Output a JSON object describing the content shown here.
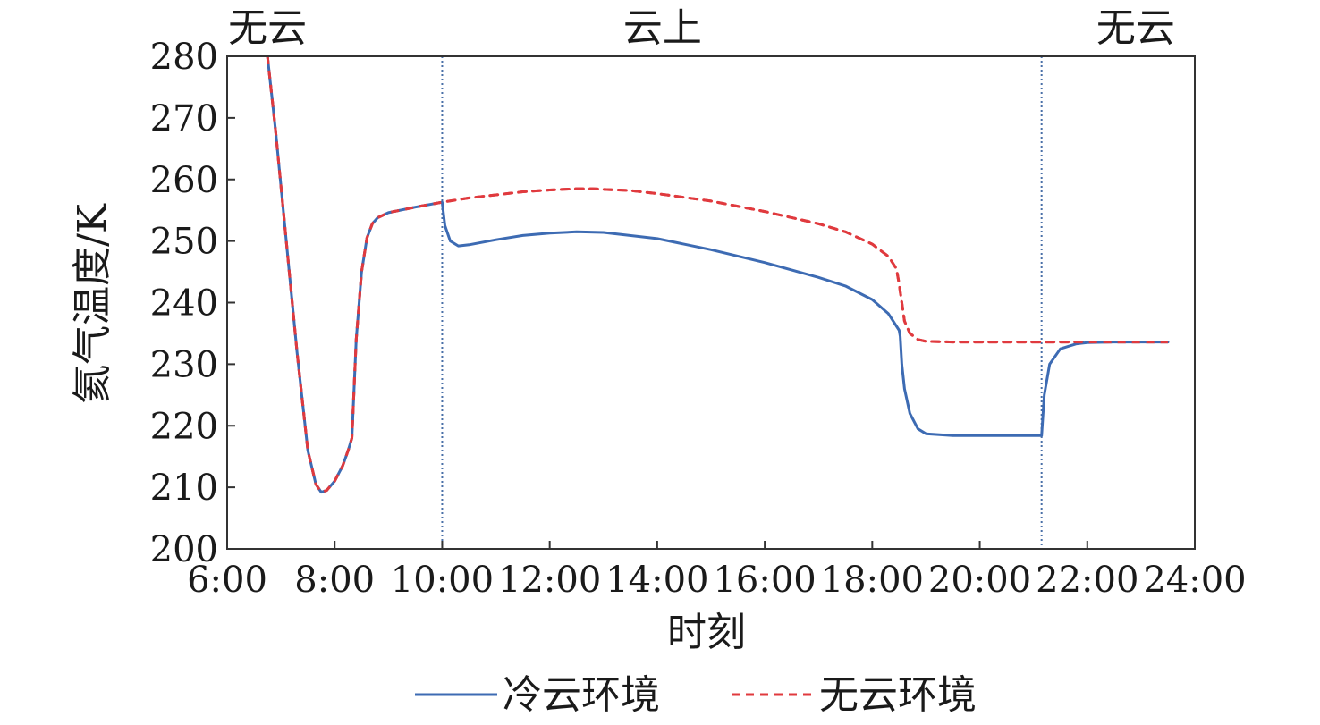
{
  "chart_data": {
    "type": "line",
    "xlabel": "时刻",
    "ylabel": "氦气温度/K",
    "xlim": [
      6,
      24
    ],
    "ylim": [
      200,
      280
    ],
    "x_ticks": [
      {
        "value": 6,
        "label": "6:00"
      },
      {
        "value": 8,
        "label": "8:00"
      },
      {
        "value": 10,
        "label": "10:00"
      },
      {
        "value": 12,
        "label": "12:00"
      },
      {
        "value": 14,
        "label": "14:00"
      },
      {
        "value": 16,
        "label": "16:00"
      },
      {
        "value": 18,
        "label": "18:00"
      },
      {
        "value": 20,
        "label": "20:00"
      },
      {
        "value": 22,
        "label": "22:00"
      },
      {
        "value": 24,
        "label": "24:00"
      }
    ],
    "y_ticks": [
      {
        "value": 200,
        "label": "200"
      },
      {
        "value": 210,
        "label": "210"
      },
      {
        "value": 220,
        "label": "220"
      },
      {
        "value": 230,
        "label": "230"
      },
      {
        "value": 240,
        "label": "240"
      },
      {
        "value": 250,
        "label": "250"
      },
      {
        "value": 260,
        "label": "260"
      },
      {
        "value": 270,
        "label": "270"
      },
      {
        "value": 280,
        "label": "280"
      }
    ],
    "grid": false,
    "legend_position": "bottom",
    "regions": [
      {
        "label": "无云",
        "from": 6,
        "to": 10
      },
      {
        "label": "云上",
        "from": 10,
        "to": 21.15
      },
      {
        "label": "无云",
        "from": 21.15,
        "to": 24
      }
    ],
    "boundaries": [
      10,
      21.15
    ],
    "series": [
      {
        "name": "冷云环境",
        "color": "#3d6bb3",
        "style": "solid",
        "x": [
          6.75,
          6.9,
          7.1,
          7.3,
          7.5,
          7.65,
          7.75,
          7.85,
          8.0,
          8.15,
          8.25,
          8.32,
          8.36,
          8.4,
          8.5,
          8.6,
          8.7,
          8.8,
          9.0,
          9.5,
          10.0,
          10.05,
          10.15,
          10.3,
          10.5,
          11.0,
          11.5,
          12.0,
          12.5,
          13.0,
          14.0,
          15.0,
          16.0,
          17.0,
          17.5,
          18.0,
          18.3,
          18.5,
          18.52,
          18.55,
          18.6,
          18.7,
          18.85,
          19.0,
          19.5,
          20.0,
          20.5,
          21.0,
          21.15,
          21.2,
          21.3,
          21.5,
          21.8,
          22.0,
          22.5,
          23.0,
          23.5
        ],
        "y": [
          280,
          268,
          250,
          232,
          216,
          210.5,
          209.2,
          209.5,
          211,
          213.5,
          216,
          218,
          226,
          234,
          245,
          250.5,
          252.8,
          253.8,
          254.6,
          255.5,
          256.3,
          252.5,
          250,
          249.2,
          249.4,
          250.2,
          250.9,
          251.3,
          251.5,
          251.4,
          250.4,
          248.6,
          246.5,
          244.1,
          242.7,
          240.5,
          238.2,
          235.5,
          234.5,
          230,
          226,
          222,
          219.5,
          218.7,
          218.4,
          218.4,
          218.4,
          218.4,
          218.4,
          225,
          230,
          232.5,
          233.3,
          233.5,
          233.6,
          233.6,
          233.6
        ]
      },
      {
        "name": "无云环境",
        "color": "#e03a3e",
        "style": "dashed",
        "x": [
          6.75,
          6.9,
          7.1,
          7.3,
          7.5,
          7.65,
          7.75,
          7.85,
          8.0,
          8.15,
          8.25,
          8.32,
          8.36,
          8.4,
          8.5,
          8.6,
          8.7,
          8.8,
          9.0,
          9.5,
          10.0,
          10.5,
          11.0,
          11.5,
          12.0,
          12.5,
          12.8,
          13.0,
          13.5,
          14.0,
          15.0,
          16.0,
          17.0,
          17.5,
          18.0,
          18.3,
          18.45,
          18.5,
          18.55,
          18.6,
          18.7,
          18.85,
          19.0,
          19.5,
          20.0,
          21.0,
          22.0,
          23.0,
          23.5
        ],
        "y": [
          280,
          268,
          250,
          232,
          216,
          210.5,
          209.2,
          209.5,
          211,
          213.5,
          216,
          218,
          226,
          234,
          245,
          250.5,
          252.8,
          253.8,
          254.6,
          255.5,
          256.3,
          257.0,
          257.5,
          258.0,
          258.3,
          258.5,
          258.5,
          258.4,
          258.2,
          257.7,
          256.5,
          254.8,
          252.8,
          251.5,
          249.5,
          247.5,
          245.5,
          243,
          240,
          237,
          235,
          234,
          233.7,
          233.6,
          233.6,
          233.6,
          233.6,
          233.6,
          233.6
        ]
      }
    ]
  }
}
